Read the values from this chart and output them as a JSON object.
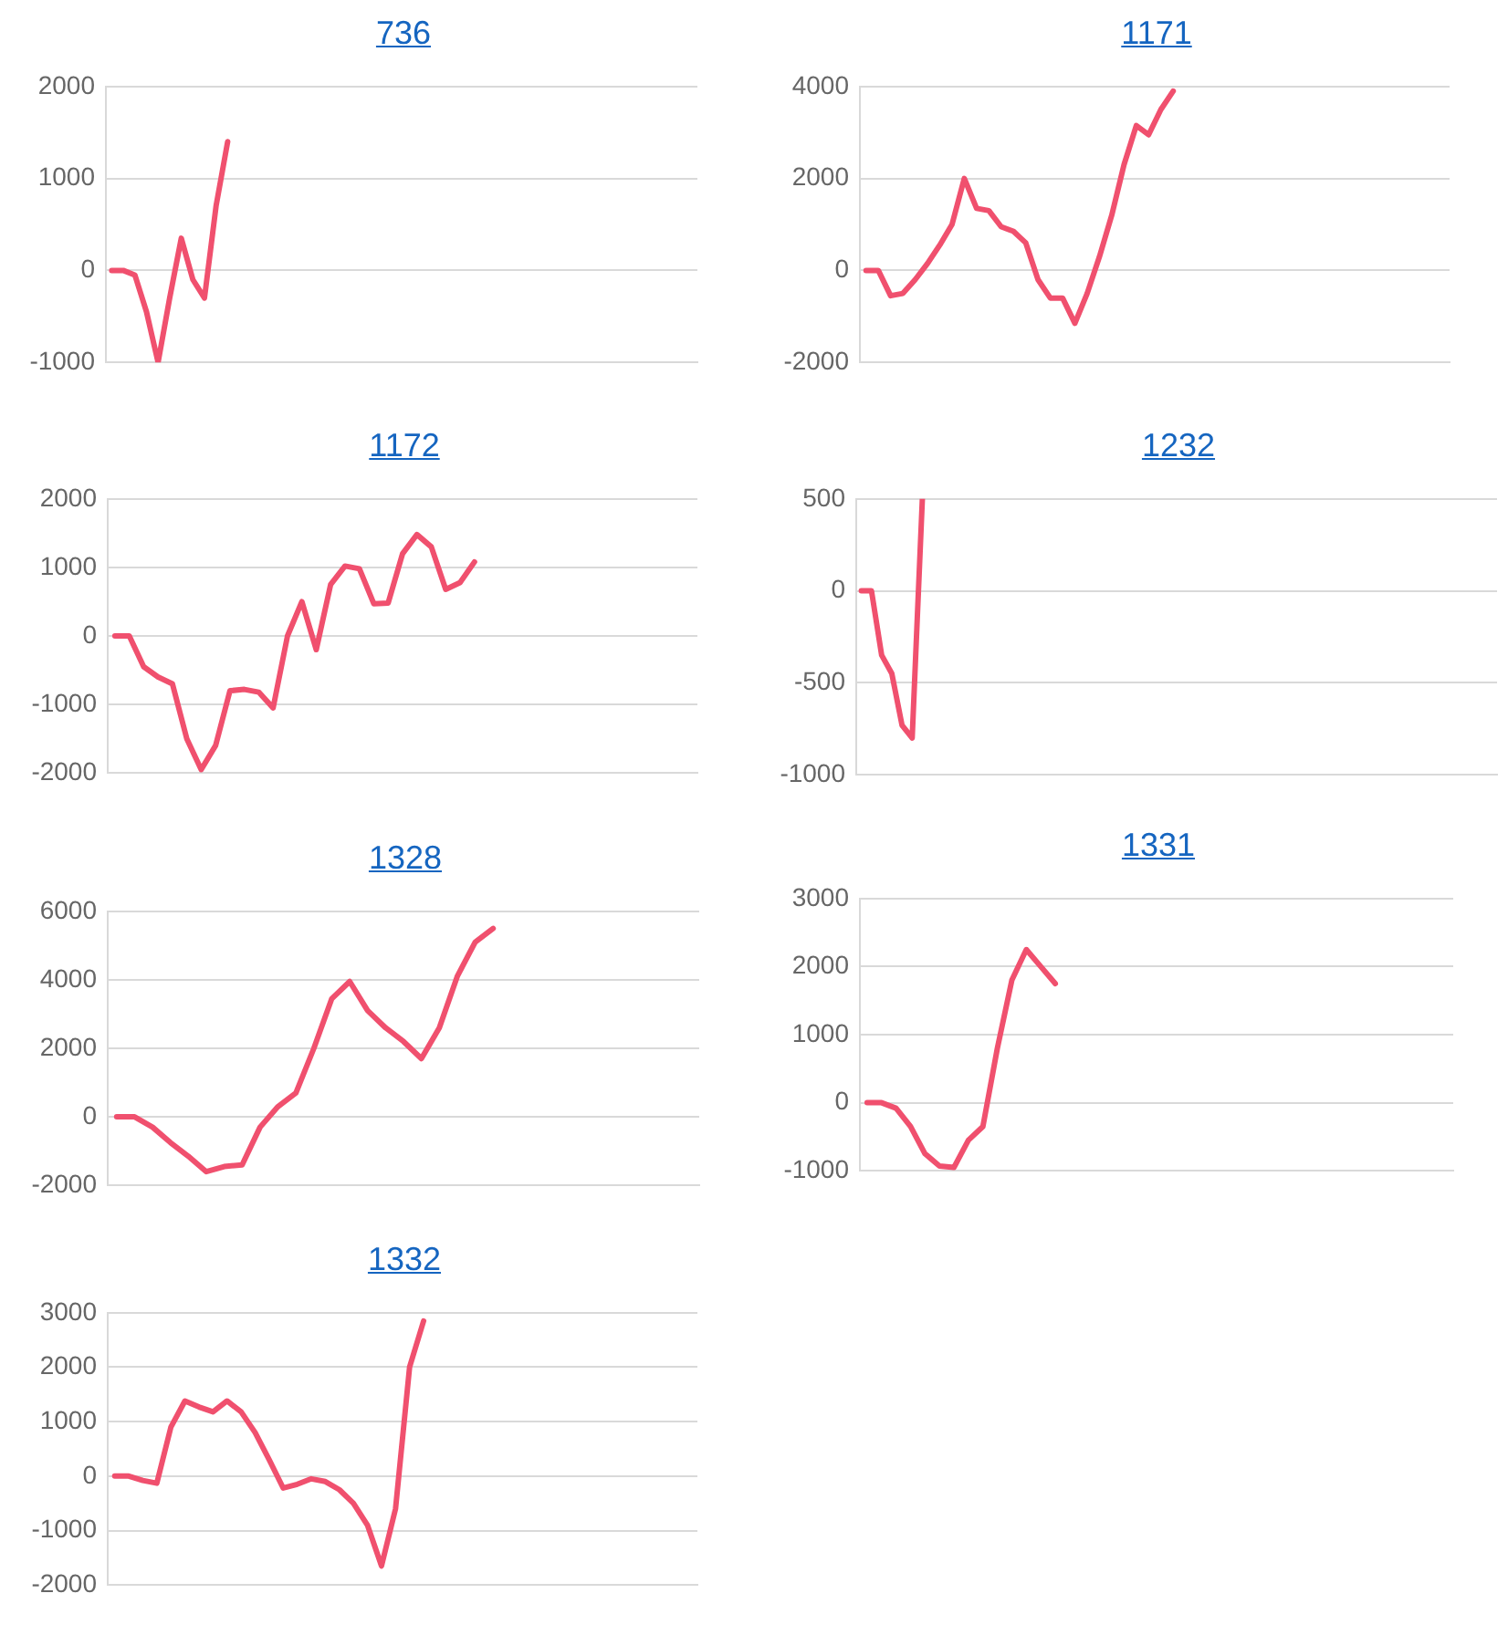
{
  "chart_data": [
    {
      "type": "line",
      "title": "736",
      "categories": [
        null,
        null,
        null,
        null,
        null,
        null,
        null,
        null,
        null,
        null,
        null,
        null,
        null,
        null,
        null,
        null,
        null,
        null,
        null,
        null,
        null,
        null,
        null,
        null,
        null,
        null,
        null,
        null,
        null,
        null,
        null,
        null,
        null,
        null,
        null,
        null,
        null,
        null,
        null,
        null,
        null,
        null,
        null,
        null,
        null,
        null,
        null,
        null,
        null,
        null,
        null
      ],
      "series": [
        {
          "color": "#f0506e",
          "values": [
            0,
            0,
            -50,
            -450,
            -1000,
            -300,
            350,
            -100,
            -300,
            700,
            1400,
            null,
            null,
            null,
            null,
            null,
            null,
            null,
            null,
            null,
            null,
            null,
            null,
            null,
            null,
            null,
            null,
            null,
            null,
            null,
            null,
            null,
            null,
            null,
            null,
            null,
            null,
            null,
            null,
            null,
            null,
            null,
            null,
            null,
            null,
            null,
            null,
            null,
            null,
            null,
            null
          ]
        }
      ],
      "ylim": [
        -1000,
        2000
      ],
      "yticks": [
        -1000,
        0,
        1000,
        2000
      ],
      "grid": "y"
    },
    {
      "type": "line",
      "title": "1171",
      "categories": [
        null,
        null,
        null,
        null,
        null,
        null,
        null,
        null,
        null,
        null,
        null,
        null,
        null,
        null,
        null,
        null,
        null,
        null,
        null,
        null,
        null,
        null,
        null,
        null,
        null,
        null,
        null,
        null,
        null,
        null,
        null,
        null,
        null,
        null,
        null,
        null,
        null,
        null,
        null,
        null,
        null,
        null,
        null,
        null,
        null,
        null,
        null,
        null
      ],
      "series": [
        {
          "color": "#f0506e",
          "values": [
            0,
            0,
            -550,
            -500,
            -200,
            150,
            550,
            1000,
            2000,
            1350,
            1300,
            950,
            850,
            600,
            -200,
            -600,
            -600,
            -1150,
            -500,
            300,
            1200,
            2300,
            3150,
            2950,
            3500,
            3900,
            null,
            null,
            null,
            null,
            null,
            null,
            null,
            null,
            null,
            null,
            null,
            null,
            null,
            null,
            null,
            null,
            null,
            null,
            null,
            null,
            null,
            null
          ]
        }
      ],
      "ylim": [
        -2000,
        4000
      ],
      "yticks": [
        -2000,
        0,
        2000,
        4000
      ],
      "grid": "y"
    },
    {
      "type": "line",
      "title": "1172",
      "categories": [
        null,
        null,
        null,
        null,
        null,
        null,
        null,
        null,
        null,
        null,
        null,
        null,
        null,
        null,
        null,
        null,
        null,
        null,
        null,
        null,
        null,
        null,
        null,
        null,
        null,
        null,
        null,
        null,
        null,
        null,
        null,
        null,
        null,
        null,
        null,
        null,
        null,
        null,
        null,
        null,
        null
      ],
      "series": [
        {
          "color": "#f0506e",
          "values": [
            0,
            0,
            -450,
            -600,
            -700,
            -1500,
            -1950,
            -1600,
            -800,
            -780,
            -820,
            -1050,
            0,
            500,
            -200,
            750,
            1020,
            980,
            470,
            480,
            1200,
            1480,
            1300,
            680,
            780,
            1080,
            null,
            null,
            null,
            null,
            null,
            null,
            null,
            null,
            null,
            null,
            null,
            null,
            null,
            null,
            null
          ]
        }
      ],
      "ylim": [
        -2000,
        2000
      ],
      "yticks": [
        -2000,
        -1000,
        0,
        1000,
        2000
      ],
      "grid": "y"
    },
    {
      "type": "line",
      "title": "1232",
      "categories": [
        null,
        null,
        null,
        null,
        null,
        null,
        null,
        null,
        null,
        null,
        null,
        null,
        null,
        null,
        null,
        null,
        null,
        null,
        null,
        null,
        null,
        null,
        null,
        null,
        null,
        null,
        null,
        null,
        null,
        null,
        null,
        null,
        null,
        null,
        null,
        null,
        null,
        null,
        null,
        null,
        null,
        null,
        null,
        null,
        null,
        null,
        null,
        null,
        null,
        null,
        null,
        null,
        null,
        null,
        null,
        null,
        null,
        null,
        null,
        null,
        null,
        null,
        null
      ],
      "series": [
        {
          "color": "#f0506e",
          "values": [
            0,
            0,
            -350,
            -450,
            -730,
            -800,
            500,
            null,
            null,
            null,
            null,
            null,
            null,
            null,
            null,
            null,
            null,
            null,
            null,
            null,
            null,
            null,
            null,
            null,
            null,
            null,
            null,
            null,
            null,
            null,
            null,
            null,
            null,
            null,
            null,
            null,
            null,
            null,
            null,
            null,
            null,
            null,
            null,
            null,
            null,
            null,
            null,
            null,
            null,
            null,
            null,
            null,
            null,
            null,
            null,
            null,
            null,
            null,
            null,
            null,
            null,
            null,
            null
          ]
        }
      ],
      "ylim": [
        -1000,
        500
      ],
      "yticks": [
        -1000,
        -500,
        0,
        500
      ],
      "grid": "y"
    },
    {
      "type": "line",
      "title": "1328",
      "categories": [
        null,
        null,
        null,
        null,
        null,
        null,
        null,
        null,
        null,
        null,
        null,
        null,
        null,
        null,
        null,
        null,
        null,
        null,
        null,
        null,
        null,
        null,
        null,
        null,
        null,
        null,
        null,
        null,
        null,
        null,
        null,
        null,
        null
      ],
      "series": [
        {
          "color": "#f0506e",
          "values": [
            0,
            0,
            -300,
            -750,
            -1150,
            -1600,
            -1450,
            -1400,
            -300,
            300,
            700,
            2000,
            3450,
            3950,
            3100,
            2600,
            2200,
            1700,
            2600,
            4100,
            5100,
            5500,
            null,
            null,
            null,
            null,
            null,
            null,
            null,
            null,
            null,
            null,
            null
          ]
        }
      ],
      "ylim": [
        -2000,
        6000
      ],
      "yticks": [
        -2000,
        0,
        2000,
        4000,
        6000
      ],
      "grid": "y"
    },
    {
      "type": "line",
      "title": "1331",
      "categories": [
        null,
        null,
        null,
        null,
        null,
        null,
        null,
        null,
        null,
        null,
        null,
        null,
        null,
        null,
        null,
        null,
        null,
        null,
        null,
        null,
        null,
        null,
        null,
        null,
        null,
        null,
        null,
        null,
        null,
        null,
        null,
        null,
        null,
        null,
        null,
        null,
        null,
        null,
        null,
        null,
        null
      ],
      "series": [
        {
          "color": "#f0506e",
          "values": [
            0,
            0,
            -80,
            -350,
            -750,
            -930,
            -950,
            -550,
            -350,
            800,
            1800,
            2250,
            2000,
            1750,
            null,
            null,
            null,
            null,
            null,
            null,
            null,
            null,
            null,
            null,
            null,
            null,
            null,
            null,
            null,
            null,
            null,
            null,
            null,
            null,
            null,
            null,
            null,
            null,
            null,
            null,
            null
          ]
        }
      ],
      "ylim": [
        -1000,
        3000
      ],
      "yticks": [
        -1000,
        0,
        1000,
        2000,
        3000
      ],
      "grid": "y"
    },
    {
      "type": "line",
      "title": "1332",
      "categories": [
        null,
        null,
        null,
        null,
        null,
        null,
        null,
        null,
        null,
        null,
        null,
        null,
        null,
        null,
        null,
        null,
        null,
        null,
        null,
        null,
        null,
        null,
        null,
        null,
        null,
        null,
        null,
        null,
        null,
        null,
        null,
        null,
        null,
        null,
        null,
        null,
        null,
        null,
        null,
        null,
        null,
        null
      ],
      "series": [
        {
          "color": "#f0506e",
          "values": [
            0,
            0,
            -80,
            -130,
            900,
            1380,
            1270,
            1180,
            1380,
            1180,
            800,
            300,
            -220,
            -150,
            -50,
            -100,
            -250,
            -500,
            -900,
            -1650,
            -600,
            2000,
            2850,
            null,
            null,
            null,
            null,
            null,
            null,
            null,
            null,
            null,
            null,
            null,
            null,
            null,
            null,
            null,
            null,
            null,
            null,
            null
          ]
        }
      ],
      "ylim": [
        -2000,
        3000
      ],
      "yticks": [
        -2000,
        -1000,
        0,
        1000,
        2000,
        3000
      ],
      "grid": "y"
    }
  ]
}
